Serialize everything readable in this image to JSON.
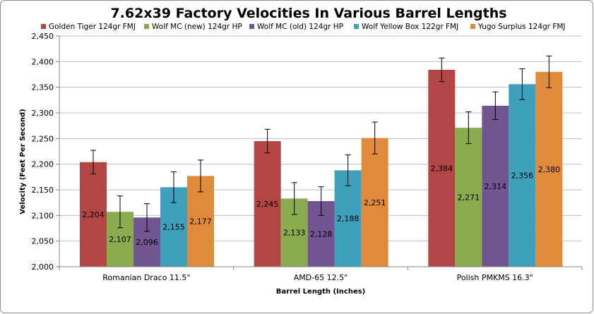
{
  "chart_data": {
    "type": "bar",
    "title": "7.62x39 Factory Velocities In Various Barrel Lengths",
    "xlabel": "Barrel Length (Inches)",
    "ylabel": "Velocity (Feet Per Second)",
    "ylim": [
      2000,
      2450
    ],
    "ytick_step": 50,
    "ytick_labels": [
      "2,000",
      "2,050",
      "2,100",
      "2,150",
      "2,200",
      "2,250",
      "2,300",
      "2,350",
      "2,400",
      "2,450"
    ],
    "grid": true,
    "legend_position": "top",
    "categories": [
      "Romanian Draco 11.5\"",
      "AMD-65 12.5\"",
      "Polish PMKMS 16.3\""
    ],
    "series": [
      {
        "name": "Golden Tiger 124gr FMJ",
        "color": "#b24645",
        "values": [
          2204,
          2245,
          2384
        ],
        "labels": [
          "2,204",
          "2,245",
          "2,384"
        ],
        "errors": [
          23,
          23,
          23
        ]
      },
      {
        "name": "Wolf MC (new) 124gr HP",
        "color": "#8aab4e",
        "values": [
          2107,
          2133,
          2271
        ],
        "labels": [
          "2,107",
          "2,133",
          "2,271"
        ],
        "errors": [
          31,
          31,
          31
        ]
      },
      {
        "name": "Wolf MC (old) 124gr HP",
        "color": "#725590",
        "values": [
          2096,
          2128,
          2314
        ],
        "labels": [
          "2,096",
          "2,128",
          "2,314"
        ],
        "errors": [
          27,
          28,
          27
        ]
      },
      {
        "name": "Wolf Yellow Box 122gr FMJ",
        "color": "#3fa0bb",
        "values": [
          2155,
          2188,
          2356
        ],
        "labels": [
          "2,155",
          "2,188",
          "2,356"
        ],
        "errors": [
          30,
          30,
          30
        ]
      },
      {
        "name": "Yugo Surplus 124gr FMJ",
        "color": "#e08a3c",
        "values": [
          2177,
          2251,
          2380
        ],
        "labels": [
          "2,177",
          "2,251",
          "2,380"
        ],
        "errors": [
          31,
          31,
          31
        ]
      }
    ]
  }
}
